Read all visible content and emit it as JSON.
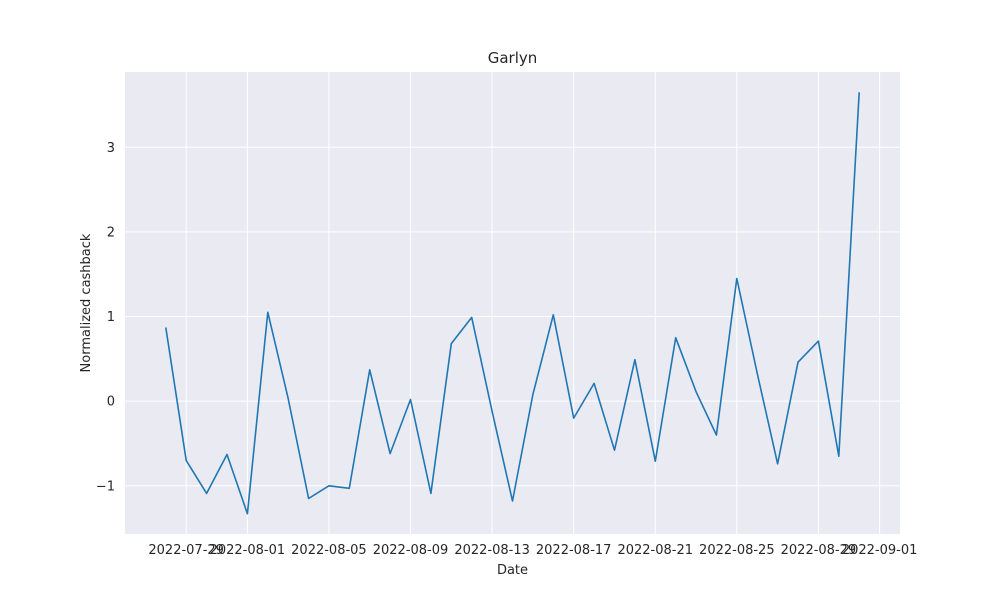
{
  "chart_data": {
    "type": "line",
    "title": "Garlyn",
    "xlabel": "Date",
    "ylabel": "Normalized cashback",
    "x_tick_labels": [
      "2022-07-29",
      "2022-08-01",
      "2022-08-05",
      "2022-08-09",
      "2022-08-13",
      "2022-08-17",
      "2022-08-21",
      "2022-08-25",
      "2022-08-29",
      "2022-09-01"
    ],
    "y_tick_labels": [
      "−1",
      "0",
      "1",
      "2",
      "3"
    ],
    "y_ticks": [
      -1,
      0,
      1,
      2,
      3
    ],
    "xlim": [
      "2022-07-26",
      "2022-09-02"
    ],
    "ylim": [
      -1.57,
      3.89
    ],
    "grid": true,
    "colors": {
      "line": "#1f77b4",
      "plot_background": "#eaeaf2",
      "grid": "#ffffff"
    },
    "series": [
      {
        "x": [
          "2022-07-28",
          "2022-07-29",
          "2022-07-30",
          "2022-07-31",
          "2022-08-01",
          "2022-08-02",
          "2022-08-03",
          "2022-08-04",
          "2022-08-05",
          "2022-08-06",
          "2022-08-07",
          "2022-08-08",
          "2022-08-09",
          "2022-08-10",
          "2022-08-11",
          "2022-08-12",
          "2022-08-13",
          "2022-08-14",
          "2022-08-15",
          "2022-08-16",
          "2022-08-17",
          "2022-08-18",
          "2022-08-19",
          "2022-08-20",
          "2022-08-21",
          "2022-08-22",
          "2022-08-23",
          "2022-08-24",
          "2022-08-25",
          "2022-08-26",
          "2022-08-27",
          "2022-08-28",
          "2022-08-29",
          "2022-08-30",
          "2022-08-31"
        ],
        "values": [
          0.87,
          -0.7,
          -1.09,
          -0.63,
          -1.33,
          1.05,
          0.03,
          -1.15,
          -1.0,
          -1.03,
          0.37,
          -0.62,
          0.02,
          -1.09,
          0.68,
          0.99,
          -0.12,
          -1.18,
          0.08,
          1.02,
          -0.2,
          0.21,
          -0.58,
          0.49,
          -0.71,
          0.75,
          0.11,
          -0.4,
          1.45,
          0.33,
          -0.74,
          0.46,
          0.71,
          -0.65,
          3.65
        ]
      }
    ]
  }
}
